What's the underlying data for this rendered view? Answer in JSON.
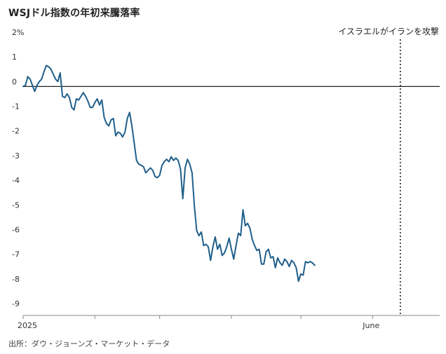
{
  "header": {
    "title": "WSJドル指数の年初来騰落率"
  },
  "footer": {
    "source": "出所：ダウ・ジョーンズ・マーケット・データ"
  },
  "colors": {
    "line": "#1f5f8b",
    "zero_line": "#222222",
    "axis": "#888888",
    "event_line": "#222222"
  },
  "chart_data": {
    "type": "line",
    "title": "WSJドル指数の年初来騰落率",
    "xlabel": "",
    "ylabel": "",
    "ylim": [
      -9,
      2
    ],
    "y_ticks": [
      {
        "value": 2,
        "label": "2%"
      },
      {
        "value": 1,
        "label": "1"
      },
      {
        "value": 0,
        "label": "0"
      },
      {
        "value": -1,
        "label": "-1"
      },
      {
        "value": -2,
        "label": "-2"
      },
      {
        "value": -3,
        "label": "-3"
      },
      {
        "value": -4,
        "label": "-4"
      },
      {
        "value": -5,
        "label": "-5"
      },
      {
        "value": -6,
        "label": "-6"
      },
      {
        "value": -7,
        "label": "-7"
      },
      {
        "value": -8,
        "label": "-8"
      },
      {
        "value": -9,
        "label": "-9"
      }
    ],
    "xlim": [
      "2025-01-01",
      "2025-06-30"
    ],
    "x_ticks": [
      {
        "date": "2025-01-01",
        "label": "2025"
      },
      {
        "date": "2025-02-01",
        "label": ""
      },
      {
        "date": "2025-03-01",
        "label": ""
      },
      {
        "date": "2025-04-01",
        "label": ""
      },
      {
        "date": "2025-05-01",
        "label": ""
      },
      {
        "date": "2025-06-01",
        "label": "June"
      }
    ],
    "grid": false,
    "annotations": [
      {
        "date": "2025-06-13",
        "label": "イスラエルがイランを攻撃"
      }
    ],
    "series": [
      {
        "name": "",
        "points": [
          [
            "2025-01-01",
            0.0
          ],
          [
            "2025-01-02",
            0.05
          ],
          [
            "2025-01-03",
            0.4
          ],
          [
            "2025-01-04",
            0.3
          ],
          [
            "2025-01-05",
            0.05
          ],
          [
            "2025-01-06",
            -0.2
          ],
          [
            "2025-01-07",
            0.05
          ],
          [
            "2025-01-08",
            0.2
          ],
          [
            "2025-01-09",
            0.3
          ],
          [
            "2025-01-10",
            0.6
          ],
          [
            "2025-01-11",
            0.85
          ],
          [
            "2025-01-12",
            0.8
          ],
          [
            "2025-01-13",
            0.7
          ],
          [
            "2025-01-14",
            0.5
          ],
          [
            "2025-01-15",
            0.3
          ],
          [
            "2025-01-16",
            0.2
          ],
          [
            "2025-01-17",
            0.55
          ],
          [
            "2025-01-18",
            -0.4
          ],
          [
            "2025-01-19",
            -0.45
          ],
          [
            "2025-01-20",
            -0.3
          ],
          [
            "2025-01-21",
            -0.45
          ],
          [
            "2025-01-22",
            -0.85
          ],
          [
            "2025-01-23",
            -0.95
          ],
          [
            "2025-01-24",
            -0.5
          ],
          [
            "2025-01-25",
            -0.55
          ],
          [
            "2025-01-26",
            -0.4
          ],
          [
            "2025-01-27",
            -0.25
          ],
          [
            "2025-01-28",
            -0.4
          ],
          [
            "2025-01-29",
            -0.6
          ],
          [
            "2025-01-30",
            -0.85
          ],
          [
            "2025-01-31",
            -0.85
          ],
          [
            "2025-02-01",
            -0.65
          ],
          [
            "2025-02-02",
            -0.5
          ],
          [
            "2025-02-03",
            -0.75
          ],
          [
            "2025-02-04",
            -0.55
          ],
          [
            "2025-02-05",
            -1.25
          ],
          [
            "2025-02-06",
            -1.5
          ],
          [
            "2025-02-07",
            -1.6
          ],
          [
            "2025-02-08",
            -1.35
          ],
          [
            "2025-02-09",
            -1.3
          ],
          [
            "2025-02-10",
            -2.0
          ],
          [
            "2025-02-11",
            -1.85
          ],
          [
            "2025-02-12",
            -1.9
          ],
          [
            "2025-02-13",
            -2.05
          ],
          [
            "2025-02-14",
            -1.85
          ],
          [
            "2025-02-15",
            -1.3
          ],
          [
            "2025-02-16",
            -1.05
          ],
          [
            "2025-02-17",
            -1.6
          ],
          [
            "2025-02-18",
            -2.3
          ],
          [
            "2025-02-19",
            -3.0
          ],
          [
            "2025-02-20",
            -3.15
          ],
          [
            "2025-02-21",
            -3.2
          ],
          [
            "2025-02-22",
            -3.25
          ],
          [
            "2025-02-23",
            -3.5
          ],
          [
            "2025-02-24",
            -3.4
          ],
          [
            "2025-02-25",
            -3.3
          ],
          [
            "2025-02-26",
            -3.4
          ],
          [
            "2025-02-27",
            -3.65
          ],
          [
            "2025-02-28",
            -3.7
          ],
          [
            "2025-03-01",
            -3.6
          ],
          [
            "2025-03-02",
            -3.2
          ],
          [
            "2025-03-03",
            -3.05
          ],
          [
            "2025-03-04",
            -2.95
          ],
          [
            "2025-03-05",
            -3.05
          ],
          [
            "2025-03-06",
            -2.85
          ],
          [
            "2025-03-07",
            -3.0
          ],
          [
            "2025-03-08",
            -2.9
          ],
          [
            "2025-03-09",
            -3.0
          ],
          [
            "2025-03-10",
            -3.35
          ],
          [
            "2025-03-11",
            -4.55
          ],
          [
            "2025-03-12",
            -3.3
          ],
          [
            "2025-03-13",
            -2.95
          ],
          [
            "2025-03-14",
            -3.15
          ],
          [
            "2025-03-15",
            -3.5
          ],
          [
            "2025-03-16",
            -4.85
          ],
          [
            "2025-03-17",
            -5.85
          ],
          [
            "2025-03-18",
            -6.05
          ],
          [
            "2025-03-19",
            -5.9
          ],
          [
            "2025-03-20",
            -6.45
          ],
          [
            "2025-03-21",
            -6.4
          ],
          [
            "2025-03-22",
            -6.5
          ],
          [
            "2025-03-23",
            -7.05
          ],
          [
            "2025-03-24",
            -6.5
          ],
          [
            "2025-03-25",
            -6.1
          ],
          [
            "2025-03-26",
            -6.6
          ],
          [
            "2025-03-27",
            -6.4
          ],
          [
            "2025-03-28",
            -6.85
          ],
          [
            "2025-03-29",
            -6.75
          ],
          [
            "2025-03-30",
            -6.5
          ],
          [
            "2025-03-31",
            -6.15
          ],
          [
            "2025-04-01",
            -6.6
          ],
          [
            "2025-04-02",
            -7.0
          ],
          [
            "2025-04-03",
            -6.45
          ],
          [
            "2025-04-04",
            -5.95
          ],
          [
            "2025-04-05",
            -6.05
          ],
          [
            "2025-04-06",
            -5.0
          ],
          [
            "2025-04-07",
            -5.65
          ],
          [
            "2025-04-08",
            -5.55
          ],
          [
            "2025-04-09",
            -5.75
          ],
          [
            "2025-04-10",
            -6.2
          ],
          [
            "2025-04-11",
            -6.45
          ],
          [
            "2025-04-12",
            -6.65
          ],
          [
            "2025-04-13",
            -6.6
          ],
          [
            "2025-04-14",
            -7.2
          ],
          [
            "2025-04-15",
            -7.2
          ],
          [
            "2025-04-16",
            -6.7
          ],
          [
            "2025-04-17",
            -6.6
          ],
          [
            "2025-04-18",
            -6.95
          ],
          [
            "2025-04-19",
            -6.9
          ],
          [
            "2025-04-20",
            -7.35
          ],
          [
            "2025-04-21",
            -6.95
          ],
          [
            "2025-04-22",
            -7.15
          ],
          [
            "2025-04-23",
            -7.25
          ],
          [
            "2025-04-24",
            -7.0
          ],
          [
            "2025-04-25",
            -7.1
          ],
          [
            "2025-04-26",
            -7.3
          ],
          [
            "2025-04-27",
            -7.05
          ],
          [
            "2025-04-28",
            -7.15
          ],
          [
            "2025-04-29",
            -7.35
          ],
          [
            "2025-04-30",
            -7.9
          ],
          [
            "2025-05-01",
            -7.6
          ],
          [
            "2025-05-02",
            -7.65
          ],
          [
            "2025-05-03",
            -7.1
          ],
          [
            "2025-05-04",
            -7.15
          ],
          [
            "2025-05-05",
            -7.1
          ],
          [
            "2025-05-06",
            -7.15
          ],
          [
            "2025-05-07",
            -7.25
          ]
        ]
      }
    ]
  }
}
